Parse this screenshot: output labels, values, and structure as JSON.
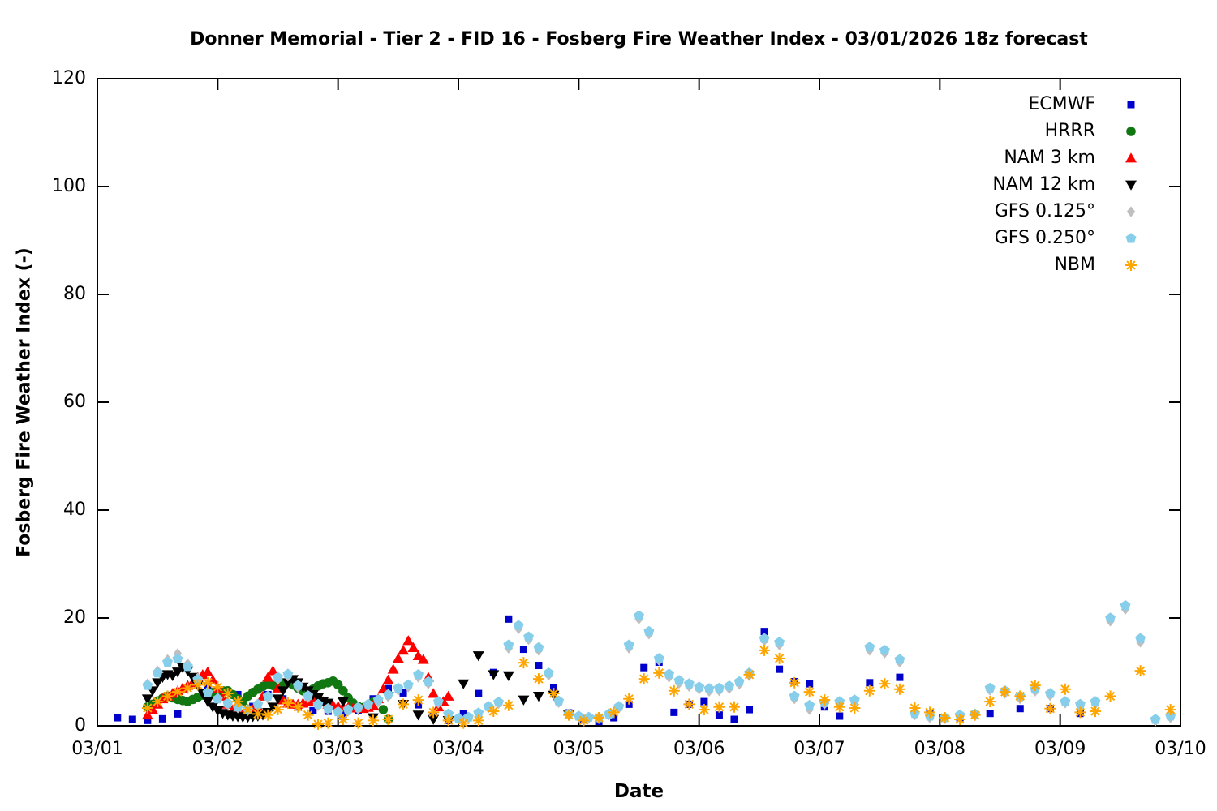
{
  "chart_data": {
    "type": "scatter",
    "title": "Donner Memorial - Tier 2 - FID 16 - Fosberg Fire Weather Index - 03/01/2026 18z forecast",
    "xlabel": "Date",
    "ylabel": "Fosberg Fire Weather Index (-)",
    "x_unit": "days since 03/01 00:00 local; segment start/step are in days",
    "xlim_days": [
      0,
      9
    ],
    "x_tick_labels": [
      "03/01",
      "03/02",
      "03/03",
      "03/04",
      "03/05",
      "03/06",
      "03/07",
      "03/08",
      "03/09",
      "03/10"
    ],
    "ylim": [
      0,
      120
    ],
    "y_ticks": [
      0,
      20,
      40,
      60,
      80,
      100,
      120
    ],
    "grid": false,
    "legend_position": "top-right-inside",
    "series": [
      {
        "id": "ecmwf",
        "name": "ECMWF",
        "marker": "square",
        "color": "#0000cc",
        "segments": [
          {
            "start": 0.167,
            "step": 0.125,
            "values": [
              1.5,
              1.2,
              1.0,
              1.3,
              2.2,
              4.8,
              7.2,
              6.6,
              5.8,
              3.6,
              5.8,
              5.0,
              3.5,
              2.8,
              2.7,
              2.1,
              2.9,
              5.0,
              6.9,
              6.1,
              3.9,
              1.9,
              1.0,
              2.3,
              6.0,
              9.9,
              19.8,
              14.2,
              11.2,
              7.1,
              2.4,
              1.1,
              0.8,
              1.5,
              4.0,
              10.8,
              11.8,
              2.5,
              4.0,
              4.5,
              2.0,
              1.2,
              3.0,
              17.5,
              10.5,
              8.2,
              7.8,
              3.5,
              1.8
            ]
          },
          {
            "start": 6.417,
            "step": 0.25,
            "values": [
              8.0,
              9.0,
              2.2,
              1.5,
              2.3,
              3.2,
              3.2,
              2.3
            ]
          }
        ]
      },
      {
        "id": "hrrr",
        "name": "HRRR",
        "marker": "circle",
        "color": "#117711",
        "segments": [
          {
            "start": 0.417,
            "step": 0.0416667,
            "values": [
              3.5,
              4.0,
              4.6,
              5.1,
              5.5,
              5.2,
              4.9,
              4.7,
              4.5,
              4.9,
              5.3,
              5.7,
              6.0,
              6.2,
              6.4,
              6.5,
              6.5,
              5.8,
              5.0,
              4.5,
              5.5,
              6.2,
              6.8,
              7.3,
              7.8,
              7.5,
              7.2,
              7.8,
              8.2,
              7.6,
              7.0,
              6.5,
              6.2,
              6.8,
              7.4,
              7.8,
              8.0,
              8.3,
              7.6,
              6.5,
              5.2,
              4.2,
              3.6,
              3.4,
              3.8,
              4.4,
              4.8,
              3.0,
              1.2
            ]
          }
        ]
      },
      {
        "id": "nam3",
        "name": "NAM 3 km",
        "marker": "triangle-up",
        "color": "#ff0000",
        "segments": [
          {
            "start": 0.417,
            "step": 0.0416667,
            "values": [
              2.0,
              3.0,
              4.0,
              5.0,
              5.5,
              6.0,
              6.5,
              7.0,
              7.5,
              8.0,
              9.0,
              9.5,
              10.0,
              8.5,
              7.0,
              5.5,
              4.0,
              3.0,
              2.5,
              2.2,
              2.5,
              3.0,
              3.5,
              5.5,
              9.0,
              10.2,
              7.0,
              4.8,
              4.2,
              4.0,
              4.0,
              4.2,
              4.5,
              4.8,
              5.0,
              4.5,
              4.0,
              3.8,
              3.6,
              3.5,
              3.4,
              3.3,
              3.3,
              3.2,
              3.4,
              3.8,
              5.0,
              6.8,
              8.5,
              10.5,
              12.5,
              14.0,
              15.8,
              14.5,
              13.0,
              12.3,
              9.0,
              6.0,
              3.5,
              4.5,
              5.5
            ]
          }
        ]
      },
      {
        "id": "nam12",
        "name": "NAM 12 km",
        "marker": "triangle-down",
        "color": "#000000",
        "segments": [
          {
            "start": 0.417,
            "step": 0.0416667,
            "values": [
              5.0,
              6.5,
              8.0,
              9.0,
              9.5,
              9.3,
              10.0,
              10.8,
              10.2,
              9.0,
              7.5,
              6.0,
              4.5,
              3.5,
              2.8,
              2.3,
              2.0,
              1.8,
              1.7,
              1.6,
              1.6,
              1.7,
              1.8,
              2.0,
              2.5,
              3.5,
              5.0,
              6.5,
              8.0,
              8.6,
              8.0,
              7.2,
              6.5,
              5.8,
              5.2,
              4.5,
              4.2
            ]
          },
          {
            "start": 2.042,
            "step": 0.125,
            "values": [
              4.5,
              3.0,
              1.5,
              5.5,
              4.0,
              2.0,
              1.2,
              1.0,
              7.8,
              13.0,
              9.5,
              9.3,
              4.8,
              5.5,
              5.7,
              2.0
            ]
          }
        ]
      },
      {
        "id": "gfs125",
        "name": "GFS 0.125°",
        "marker": "diamond",
        "color": "#bfbfbf",
        "segments": [
          {
            "start": 0.417,
            "step": 0.0833333,
            "values": [
              7.8,
              10.2,
              12.3,
              13.4,
              11.5,
              8.9,
              6.4,
              5.2,
              4.0,
              3.3,
              2.8,
              3.7,
              5.2,
              8.6,
              9.2,
              7.1,
              5.2,
              3.7,
              3.0,
              2.4,
              2.7,
              3.1,
              3.7,
              4.4,
              5.4,
              6.6,
              7.2,
              9.0,
              7.8,
              4.2,
              2.0,
              1.2,
              1.4,
              2.2,
              3.3,
              4.1,
              14.4,
              18.0,
              16.0,
              14.0,
              9.4,
              4.3,
              2.0,
              1.6,
              1.4,
              1.3,
              2.0,
              3.3,
              14.4,
              19.8,
              17.0,
              12.1,
              9.0,
              7.9,
              7.3,
              6.8,
              6.4,
              6.5,
              6.9,
              7.7,
              9.3
            ]
          },
          {
            "start": 5.542,
            "step": 0.125,
            "values": [
              15.8,
              15.0,
              5.0,
              3.0,
              4.0,
              4.2,
              4.5,
              14.0,
              13.5,
              11.8,
              2.0,
              1.5,
              1.3,
              1.7,
              1.9,
              6.6,
              6.0,
              5.0,
              6.4,
              5.6,
              4.2,
              3.6,
              4.0,
              19.4,
              21.6,
              15.5,
              0.9,
              1.5
            ]
          }
        ]
      },
      {
        "id": "gfs250",
        "name": "GFS 0.250°",
        "marker": "pentagon",
        "color": "#87ceeb",
        "segments": [
          {
            "start": 0.417,
            "step": 0.0833333,
            "values": [
              7.5,
              9.8,
              11.8,
              12.4,
              11.0,
              8.6,
              6.2,
              5.0,
              4.2,
              3.5,
              3.0,
              4.0,
              5.5,
              9.0,
              9.6,
              7.5,
              5.6,
              4.0,
              3.2,
              2.6,
              3.0,
              3.4,
              4.0,
              4.8,
              5.8,
              7.0,
              7.6,
              9.5,
              8.2,
              4.5,
              2.2,
              1.4,
              1.6,
              2.4,
              3.6,
              4.4,
              15.0,
              18.6,
              16.5,
              14.5,
              9.8,
              4.6,
              2.2,
              1.8,
              1.6,
              1.5,
              2.2,
              3.6,
              15.0,
              20.4,
              17.5,
              12.5,
              9.6,
              8.4,
              7.8,
              7.2,
              6.9,
              7.0,
              7.4,
              8.2,
              9.8
            ]
          },
          {
            "start": 5.542,
            "step": 0.125,
            "values": [
              16.2,
              15.5,
              5.5,
              3.8,
              4.3,
              4.5,
              4.8,
              14.6,
              14.0,
              12.3,
              2.3,
              1.8,
              1.5,
              2.0,
              2.2,
              7.0,
              6.5,
              5.5,
              6.8,
              6.0,
              4.5,
              4.0,
              4.5,
              20.0,
              22.3,
              16.2,
              1.2,
              1.8
            ]
          }
        ]
      },
      {
        "id": "nbm",
        "name": "NBM",
        "marker": "asterisk",
        "color": "#ffa500",
        "segments": [
          {
            "start": 0.417,
            "step": 0.0833333,
            "values": [
              3.3,
              4.5,
              5.5,
              6.3,
              7.0,
              7.6,
              8.0,
              7.2,
              6.0,
              4.5,
              3.0,
              2.2,
              2.0,
              3.0,
              4.2,
              3.5,
              2.0,
              0.3,
              0.5
            ]
          },
          {
            "start": 2.042,
            "step": 0.125,
            "values": [
              1.2,
              0.5,
              1.0,
              1.2,
              4.0,
              4.8,
              2.5,
              1.0,
              0.5,
              1.0,
              2.7,
              3.8,
              11.7,
              8.7,
              6.0,
              2.0,
              1.0,
              1.5,
              2.5,
              5.0,
              8.7,
              9.8,
              6.5,
              4.0,
              3.0,
              3.5,
              3.5,
              9.5,
              14.0,
              12.5,
              8.0,
              6.3,
              4.8,
              3.5,
              3.3,
              6.5,
              7.8,
              6.8,
              3.3,
              2.5,
              1.5,
              1.2,
              2.0,
              4.5,
              6.3,
              5.5,
              7.5,
              3.2,
              6.8,
              2.5,
              2.7,
              5.5
            ]
          },
          {
            "start": 8.667,
            "step": 0.25,
            "values": [
              10.2,
              3.0
            ]
          }
        ]
      }
    ]
  }
}
